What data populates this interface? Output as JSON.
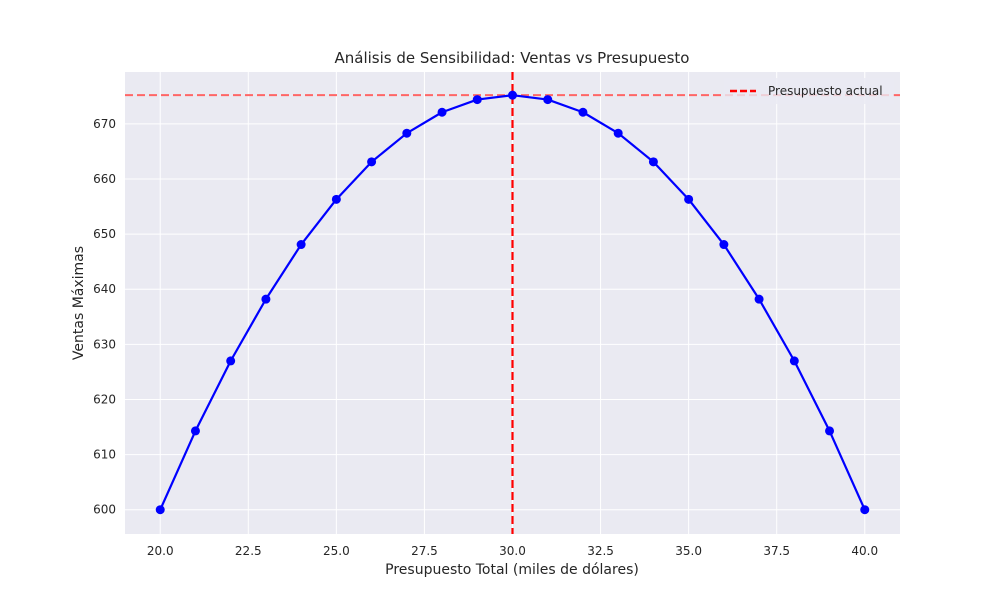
{
  "chart_data": {
    "type": "line",
    "title": "Análisis de Sensibilidad: Ventas vs Presupuesto",
    "xlabel": "Presupuesto Total (miles de dólares)",
    "ylabel": "Ventas Máximas",
    "xlim": [
      19.0,
      41.0
    ],
    "ylim": [
      595.6,
      679.4
    ],
    "xticks": [
      20.0,
      22.5,
      25.0,
      27.5,
      30.0,
      32.5,
      35.0,
      37.5,
      40.0
    ],
    "xtick_labels": [
      "20.0",
      "22.5",
      "25.0",
      "27.5",
      "30.0",
      "32.5",
      "35.0",
      "37.5",
      "40.0"
    ],
    "yticks": [
      600,
      610,
      620,
      630,
      640,
      650,
      660,
      670
    ],
    "ytick_labels": [
      "600",
      "610",
      "620",
      "630",
      "640",
      "650",
      "660",
      "670"
    ],
    "grid": true,
    "background_color": "#eaeaf2",
    "series": [
      {
        "color": "#0000ff",
        "marker": "circle",
        "x": [
          20,
          21,
          22,
          23,
          24,
          25,
          26,
          27,
          28,
          29,
          30,
          31,
          32,
          33,
          34,
          35,
          36,
          37,
          38,
          39,
          40
        ],
        "y": [
          600,
          614.3,
          627,
          638.2,
          648.1,
          656.3,
          663.1,
          668.3,
          672.1,
          674.4,
          675.2,
          674.4,
          672.1,
          668.3,
          663.1,
          656.3,
          648.1,
          638.2,
          627,
          614.3,
          600
        ]
      }
    ],
    "reference_lines": {
      "vertical": {
        "x": 30.0,
        "color": "#ff0000",
        "style": "dashed",
        "label": "Presupuesto actual"
      },
      "horizontal": {
        "y": 675.2,
        "color": "#ff6666",
        "style": "dashed"
      }
    },
    "legend": {
      "placement": "top-right",
      "entries": [
        {
          "label": "Presupuesto actual",
          "color": "#ff0000",
          "style": "dashed"
        }
      ]
    }
  }
}
